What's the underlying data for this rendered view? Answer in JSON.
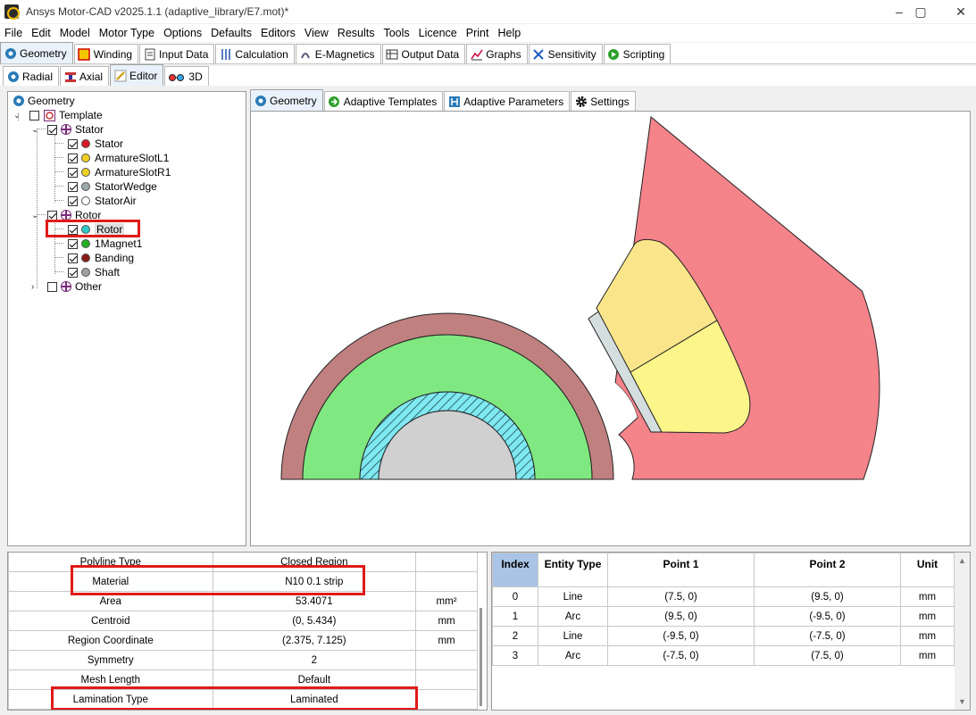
{
  "window": {
    "title": "Ansys Motor-CAD v2025.1.1 (adaptive_library/E7.mot)*",
    "min": "–",
    "max": "▢",
    "close": "✕"
  },
  "menu": [
    "File",
    "Edit",
    "Model",
    "Motor Type",
    "Options",
    "Defaults",
    "Editors",
    "View",
    "Results",
    "Tools",
    "Licence",
    "Print",
    "Help"
  ],
  "main_tabs": [
    "Geometry",
    "Winding",
    "Input Data",
    "Calculation",
    "E-Magnetics",
    "Output Data",
    "Graphs",
    "Sensitivity",
    "Scripting"
  ],
  "sub_tabs": [
    "Radial",
    "Axial",
    "Editor",
    "3D"
  ],
  "tree": {
    "root": "Geometry",
    "template": "Template",
    "stator": "Stator",
    "stator_children": [
      "Stator",
      "ArmatureSlotL1",
      "ArmatureSlotR1",
      "StatorWedge",
      "StatorAir"
    ],
    "rotor": "Rotor",
    "rotor_children": [
      "Rotor",
      "1Magnet1",
      "Banding",
      "Shaft"
    ],
    "other": "Other",
    "colors": {
      "Stator": "#d8192a",
      "ArmatureSlotL1": "#f0d020",
      "ArmatureSlotR1": "#f0d020",
      "StatorWedge": "#9aaaa8",
      "StatorAir": "#ffffff",
      "Rotor": "#30c8c8",
      "1Magnet1": "#20b020",
      "Banding": "#8a1a1a",
      "Shaft": "#a0a0a0"
    }
  },
  "view_tabs": [
    "Geometry",
    "Adaptive Templates",
    "Adaptive Parameters",
    "Settings"
  ],
  "properties": [
    {
      "name": "Polyline Type",
      "value": "Closed Region",
      "unit": ""
    },
    {
      "name": "Material",
      "value": "N10 0.1 strip",
      "unit": ""
    },
    {
      "name": "Area",
      "value": "53.4071",
      "unit": "mm²"
    },
    {
      "name": "Centroid",
      "value": "(0, 5.434)",
      "unit": "mm"
    },
    {
      "name": "Region Coordinate",
      "value": "(2.375, 7.125)",
      "unit": "mm"
    },
    {
      "name": "Symmetry",
      "value": "2",
      "unit": ""
    },
    {
      "name": "Mesh Length",
      "value": "Default",
      "unit": ""
    },
    {
      "name": "Lamination Type",
      "value": "Laminated",
      "unit": ""
    }
  ],
  "entities": {
    "headers": [
      "Index",
      "Entity Type",
      "Point 1",
      "Point 2",
      "Unit"
    ],
    "rows": [
      [
        "0",
        "Line",
        "(7.5, 0)",
        "(9.5, 0)",
        "mm"
      ],
      [
        "1",
        "Arc",
        "(9.5, 0)",
        "(-9.5, 0)",
        "mm"
      ],
      [
        "2",
        "Line",
        "(-9.5, 0)",
        "(-7.5, 0)",
        "mm"
      ],
      [
        "3",
        "Arc",
        "(-7.5, 0)",
        "(7.5, 0)",
        "mm"
      ]
    ]
  },
  "geometry_colors": {
    "stator": "#f5838a",
    "slot_left": "#fbe58a",
    "slot_right": "#fbf58a",
    "wedge": "#d4dede",
    "banding": "#c08080",
    "rotor": "#80e880",
    "magnet_hatch": "#7fe8f0",
    "shaft": "#d0d0d0"
  }
}
